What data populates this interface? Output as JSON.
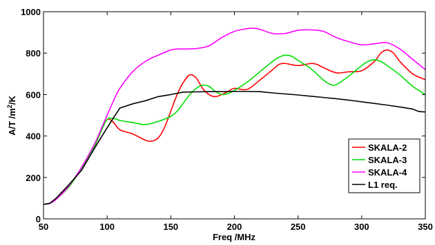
{
  "chart_data": {
    "type": "line",
    "title": "",
    "xlabel": "Freq /MHz",
    "ylabel_parts": [
      "A/T /m",
      "2",
      "/K"
    ],
    "xlim": [
      50,
      350
    ],
    "ylim": [
      0,
      1000
    ],
    "xticks": [
      50,
      100,
      150,
      200,
      250,
      300,
      350
    ],
    "yticks": [
      0,
      200,
      400,
      600,
      800,
      1000
    ],
    "grid": false,
    "legend_position": "lower-right",
    "series": [
      {
        "name": "SKALA-2",
        "color": "#ff0000",
        "x": [
          50,
          55,
          60,
          70,
          80,
          90,
          95,
          100,
          105,
          110,
          120,
          130,
          135,
          140,
          145,
          150,
          155,
          160,
          165,
          170,
          175,
          180,
          185,
          190,
          195,
          200,
          210,
          220,
          230,
          235,
          240,
          250,
          260,
          265,
          270,
          280,
          290,
          300,
          310,
          315,
          320,
          325,
          330,
          340,
          350
        ],
        "y": [
          70,
          75,
          95,
          155,
          245,
          350,
          420,
          480,
          465,
          430,
          410,
          380,
          375,
          390,
          440,
          520,
          600,
          660,
          695,
          680,
          630,
          600,
          590,
          600,
          615,
          630,
          625,
          670,
          720,
          745,
          750,
          740,
          750,
          745,
          730,
          705,
          710,
          715,
          760,
          800,
          815,
          800,
          760,
          700,
          672
        ]
      },
      {
        "name": "SKALA-3",
        "color": "#00dd00",
        "x": [
          50,
          55,
          60,
          70,
          80,
          90,
          95,
          100,
          105,
          110,
          120,
          130,
          140,
          150,
          155,
          160,
          165,
          170,
          175,
          180,
          185,
          190,
          195,
          200,
          210,
          220,
          230,
          235,
          240,
          245,
          250,
          260,
          270,
          275,
          280,
          290,
          300,
          305,
          310,
          315,
          320,
          330,
          340,
          350
        ],
        "y": [
          70,
          75,
          95,
          155,
          245,
          350,
          420,
          480,
          485,
          475,
          465,
          455,
          470,
          495,
          520,
          560,
          600,
          630,
          645,
          640,
          615,
          600,
          605,
          620,
          660,
          710,
          760,
          780,
          790,
          785,
          765,
          725,
          670,
          650,
          648,
          690,
          740,
          760,
          768,
          760,
          740,
          695,
          640,
          600
        ]
      },
      {
        "name": "SKALA-4",
        "color": "#ff00ff",
        "x": [
          50,
          55,
          60,
          70,
          80,
          90,
          95,
          100,
          105,
          110,
          120,
          130,
          140,
          150,
          155,
          160,
          170,
          180,
          190,
          200,
          210,
          215,
          220,
          230,
          240,
          250,
          260,
          270,
          280,
          290,
          300,
          310,
          320,
          330,
          340,
          350
        ],
        "y": [
          70,
          75,
          95,
          160,
          250,
          360,
          430,
          500,
          570,
          630,
          710,
          760,
          790,
          815,
          820,
          820,
          822,
          835,
          875,
          905,
          918,
          920,
          915,
          895,
          895,
          910,
          912,
          905,
          875,
          855,
          840,
          845,
          850,
          820,
          770,
          720
        ]
      },
      {
        "name": "L1 req.",
        "color": "#000000",
        "x": [
          50,
          55,
          60,
          70,
          80,
          90,
          100,
          110,
          120,
          130,
          140,
          150,
          160,
          170,
          180,
          190,
          200,
          210,
          220,
          230,
          240,
          250,
          260,
          270,
          280,
          290,
          300,
          310,
          320,
          330,
          340,
          345,
          350
        ],
        "y": [
          70,
          75,
          100,
          165,
          235,
          340,
          440,
          535,
          555,
          570,
          590,
          600,
          612,
          613,
          614,
          614,
          615,
          615,
          614,
          608,
          603,
          598,
          592,
          586,
          580,
          573,
          565,
          557,
          549,
          540,
          530,
          518,
          516
        ]
      }
    ]
  }
}
